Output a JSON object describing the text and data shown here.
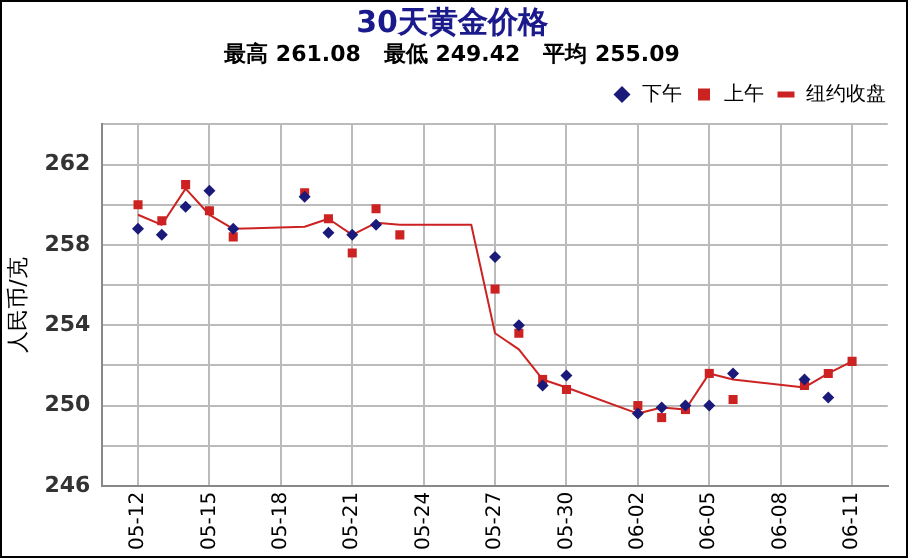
{
  "chart_data": {
    "type": "line",
    "title": "30天黄金价格",
    "subtitle": "最高 261.08   最低 249.42   平均 255.09",
    "ylabel": "人民币/克",
    "categories": [
      null,
      "05-12",
      null,
      null,
      "05-15",
      null,
      null,
      "05-18",
      null,
      null,
      "05-21",
      null,
      null,
      "05-24",
      null,
      null,
      "05-27",
      null,
      null,
      "05-30",
      null,
      null,
      "06-02",
      null,
      null,
      "06-05",
      null,
      null,
      "06-08",
      null,
      null,
      "06-11",
      null
    ],
    "series": [
      {
        "name": "纽约收盘",
        "color": "#cc2222",
        "marker": "none",
        "values": [
          null,
          259.5,
          259.0,
          260.8,
          259.5,
          258.8,
          null,
          null,
          258.9,
          259.3,
          258.5,
          259.1,
          259.0,
          null,
          null,
          259.0,
          253.6,
          252.8,
          251.3,
          250.9,
          null,
          null,
          249.6,
          249.9,
          249.8,
          251.6,
          251.3,
          null,
          null,
          250.9,
          251.6,
          252.2,
          null
        ]
      },
      {
        "name": "上午",
        "type": "scatter",
        "color": "#cc2222",
        "marker": "square",
        "values": [
          null,
          260.0,
          259.2,
          261.0,
          259.7,
          258.4,
          null,
          null,
          260.6,
          259.3,
          257.6,
          259.8,
          258.5,
          null,
          null,
          null,
          255.8,
          253.6,
          251.3,
          250.8,
          null,
          null,
          250.0,
          249.4,
          249.8,
          251.6,
          250.3,
          null,
          null,
          251.0,
          251.6,
          252.2,
          null
        ]
      },
      {
        "name": "下午",
        "type": "scatter",
        "color": "#1a1a7a",
        "marker": "diamond",
        "values": [
          null,
          258.8,
          258.5,
          259.9,
          260.7,
          258.8,
          null,
          null,
          260.4,
          258.6,
          258.5,
          259.0,
          null,
          null,
          null,
          null,
          257.4,
          254.0,
          251.0,
          251.5,
          null,
          null,
          249.6,
          249.9,
          250.0,
          250.0,
          251.6,
          null,
          null,
          251.3,
          250.4,
          null,
          null
        ]
      }
    ],
    "ylim": [
      246,
      264
    ],
    "yticks": [
      246,
      {
        "value": 248,
        "label": null
      },
      250,
      {
        "value": 252,
        "label": null
      },
      254,
      {
        "value": 256,
        "label": null
      },
      258,
      {
        "value": 260,
        "label": null
      },
      262,
      {
        "value": 264,
        "label": null
      }
    ],
    "grid": true,
    "legend": "top right"
  }
}
